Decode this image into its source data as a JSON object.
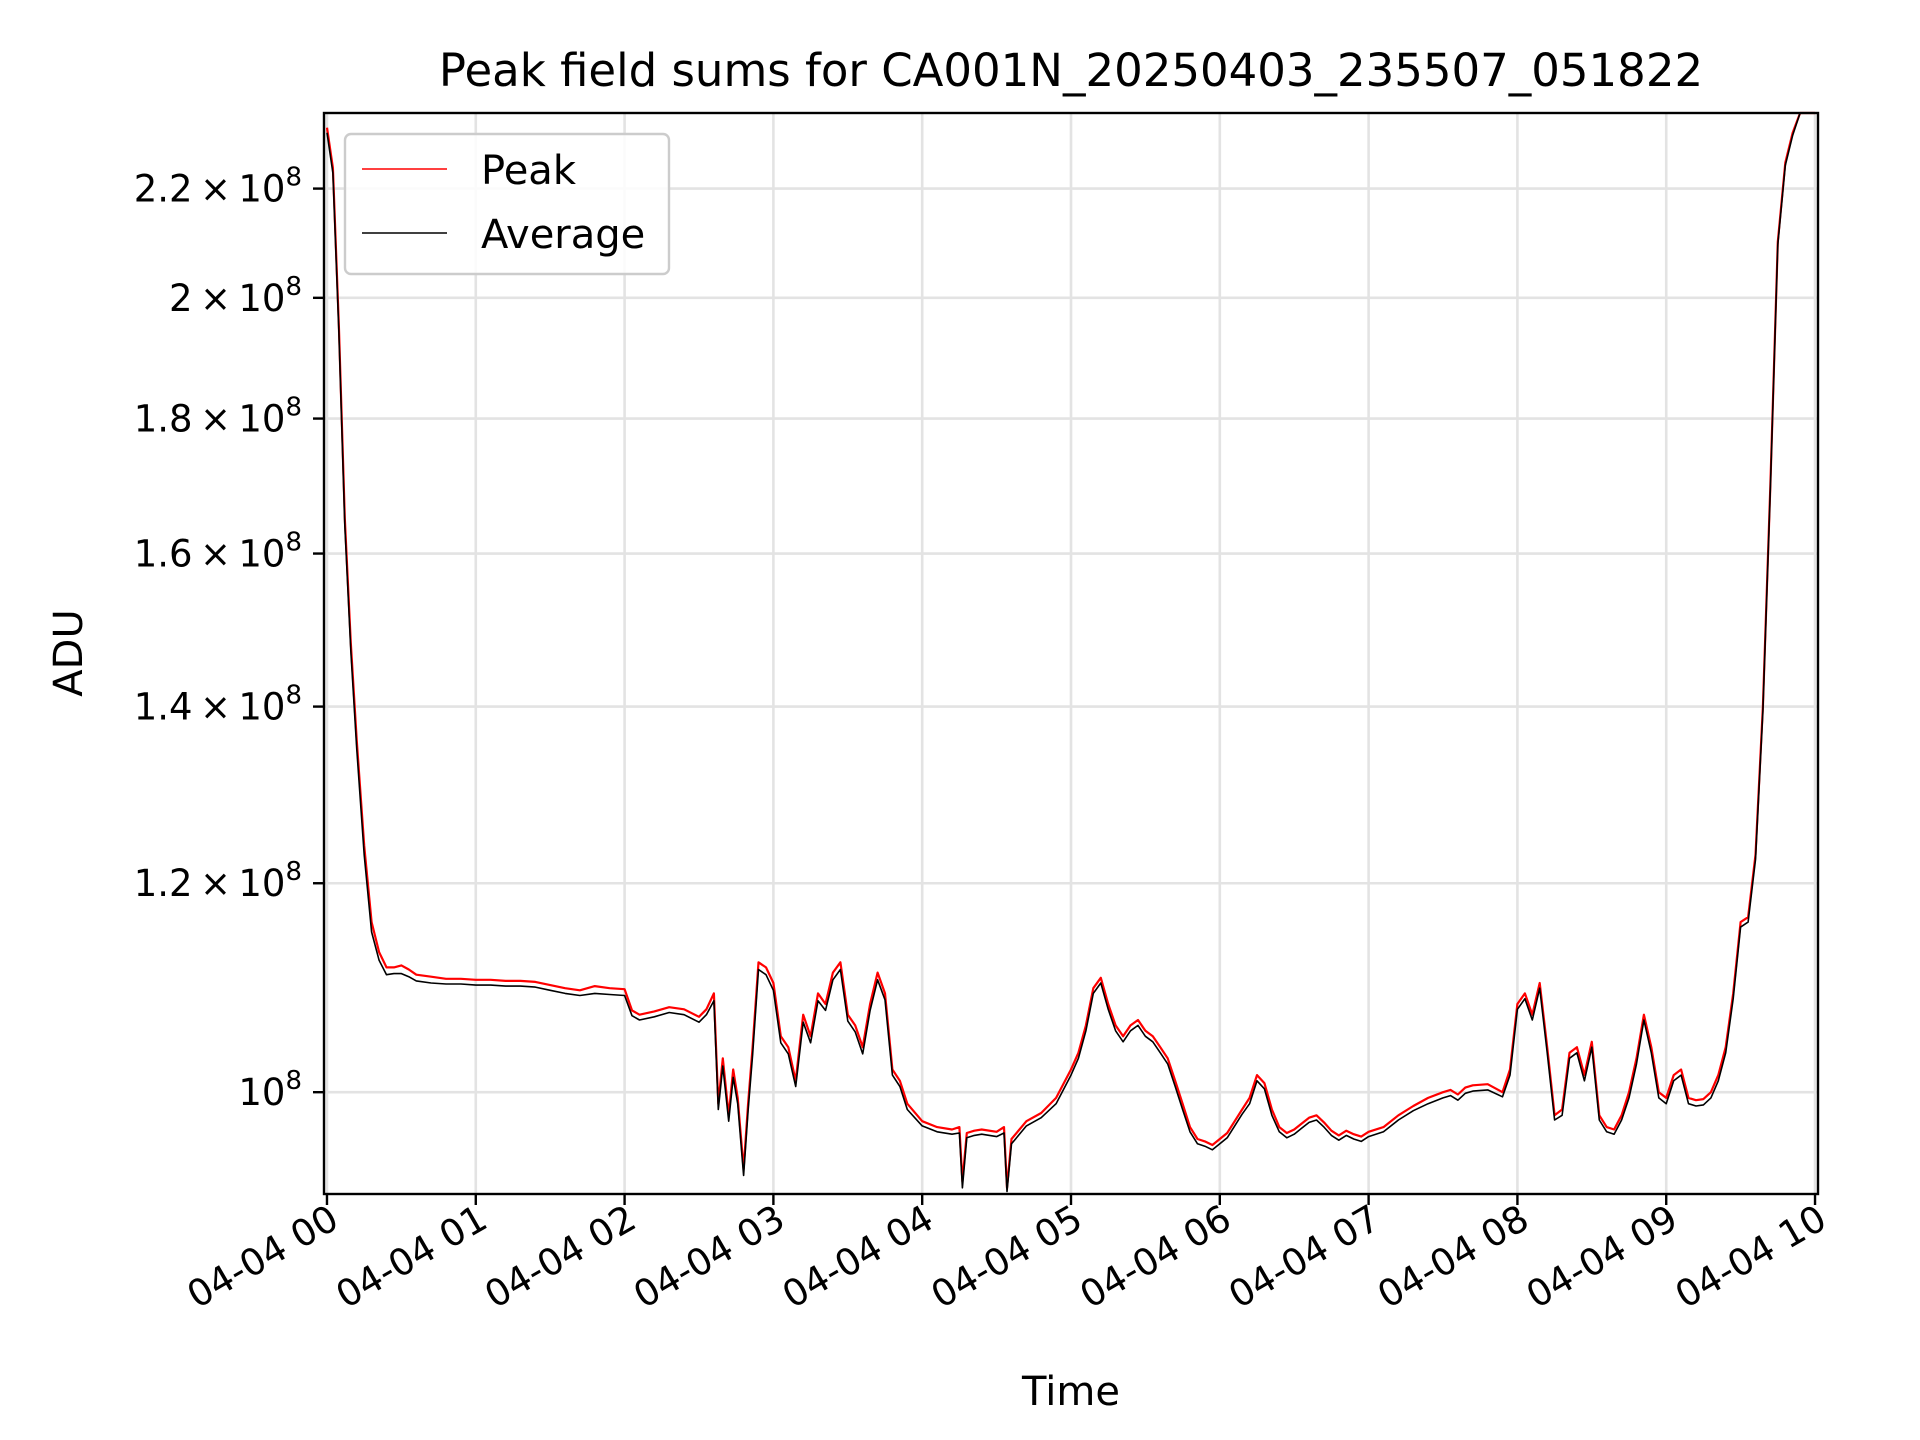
{
  "chart_data": {
    "type": "line",
    "title": "Peak field sums for CA001N_20250403_235507_051822",
    "xlabel": "Time",
    "ylabel": "ADU",
    "x_unit": "hours after 2025-04-04 00:00",
    "xlim": [
      -0.02,
      10.02
    ],
    "ylim": [
      91500000,
      235000000
    ],
    "y_scale": "log",
    "grid": true,
    "legend_position": "top-left",
    "x_ticks": [
      {
        "value": 0,
        "label": "04-04 00"
      },
      {
        "value": 1,
        "label": "04-04 01"
      },
      {
        "value": 2,
        "label": "04-04 02"
      },
      {
        "value": 3,
        "label": "04-04 03"
      },
      {
        "value": 4,
        "label": "04-04 04"
      },
      {
        "value": 5,
        "label": "04-04 05"
      },
      {
        "value": 6,
        "label": "04-04 06"
      },
      {
        "value": 7,
        "label": "04-04 07"
      },
      {
        "value": 8,
        "label": "04-04 08"
      },
      {
        "value": 9,
        "label": "04-04 09"
      },
      {
        "value": 10,
        "label": "04-04 10"
      }
    ],
    "y_ticks": [
      {
        "value": 100000000,
        "mantissa": "",
        "exponent": "8"
      },
      {
        "value": 120000000,
        "mantissa": "1.2",
        "exponent": "8"
      },
      {
        "value": 140000000,
        "mantissa": "1.4",
        "exponent": "8"
      },
      {
        "value": 160000000,
        "mantissa": "1.6",
        "exponent": "8"
      },
      {
        "value": 180000000,
        "mantissa": "1.8",
        "exponent": "8"
      },
      {
        "value": 200000000,
        "mantissa": "2",
        "exponent": "8"
      },
      {
        "value": 220000000,
        "mantissa": "2.2",
        "exponent": "8"
      }
    ],
    "series": [
      {
        "name": "Peak",
        "color": "#ff0000",
        "x": [
          0.0,
          0.04,
          0.08,
          0.12,
          0.16,
          0.2,
          0.25,
          0.3,
          0.35,
          0.4,
          0.45,
          0.5,
          0.55,
          0.6,
          0.7,
          0.8,
          0.9,
          1.0,
          1.1,
          1.2,
          1.3,
          1.4,
          1.5,
          1.6,
          1.7,
          1.8,
          1.9,
          2.0,
          2.05,
          2.1,
          2.2,
          2.3,
          2.4,
          2.5,
          2.55,
          2.6,
          2.63,
          2.66,
          2.7,
          2.73,
          2.76,
          2.8,
          2.83,
          2.86,
          2.9,
          2.95,
          3.0,
          3.05,
          3.1,
          3.15,
          3.2,
          3.25,
          3.3,
          3.35,
          3.4,
          3.45,
          3.5,
          3.55,
          3.6,
          3.65,
          3.7,
          3.75,
          3.8,
          3.85,
          3.9,
          4.0,
          4.1,
          4.2,
          4.25,
          4.27,
          4.3,
          4.35,
          4.4,
          4.5,
          4.55,
          4.57,
          4.6,
          4.7,
          4.8,
          4.9,
          5.0,
          5.05,
          5.1,
          5.15,
          5.2,
          5.25,
          5.3,
          5.35,
          5.4,
          5.45,
          5.5,
          5.55,
          5.6,
          5.65,
          5.7,
          5.75,
          5.8,
          5.85,
          5.9,
          5.95,
          6.0,
          6.05,
          6.1,
          6.15,
          6.2,
          6.25,
          6.3,
          6.35,
          6.4,
          6.45,
          6.5,
          6.55,
          6.6,
          6.65,
          6.7,
          6.75,
          6.8,
          6.85,
          6.9,
          6.95,
          7.0,
          7.1,
          7.2,
          7.3,
          7.4,
          7.5,
          7.55,
          7.6,
          7.65,
          7.7,
          7.8,
          7.9,
          7.95,
          8.0,
          8.05,
          8.1,
          8.15,
          8.2,
          8.25,
          8.3,
          8.35,
          8.4,
          8.45,
          8.5,
          8.55,
          8.6,
          8.65,
          8.7,
          8.75,
          8.8,
          8.85,
          8.9,
          8.95,
          9.0,
          9.05,
          9.1,
          9.15,
          9.2,
          9.25,
          9.3,
          9.35,
          9.4,
          9.45,
          9.5,
          9.55,
          9.6,
          9.65,
          9.7,
          9.75,
          9.8,
          9.85,
          9.9,
          9.95,
          10.0
        ],
        "values": [
          232000000,
          224000000,
          195000000,
          165000000,
          148000000,
          136000000,
          124000000,
          116000000,
          113000000,
          111500000,
          111500000,
          111700000,
          111300000,
          110800000,
          110600000,
          110400000,
          110400000,
          110300000,
          110300000,
          110200000,
          110200000,
          110100000,
          109800000,
          109500000,
          109300000,
          109700000,
          109500000,
          109400000,
          107400000,
          107000000,
          107300000,
          107700000,
          107500000,
          106800000,
          107500000,
          109000000,
          99000000,
          103000000,
          98000000,
          102000000,
          99500000,
          93500000,
          99000000,
          104000000,
          112000000,
          111500000,
          110000000,
          105000000,
          104000000,
          101000000,
          107000000,
          105000000,
          109000000,
          108000000,
          111000000,
          112000000,
          107000000,
          106000000,
          104000000,
          108000000,
          111000000,
          109000000,
          102000000,
          101000000,
          99000000,
          97500000,
          97000000,
          96800000,
          97000000,
          92500000,
          96500000,
          96700000,
          96800000,
          96600000,
          97000000,
          92000000,
          96000000,
          97500000,
          98200000,
          99500000,
          102000000,
          103500000,
          106000000,
          109500000,
          110500000,
          108000000,
          106000000,
          105000000,
          106000000,
          106500000,
          105500000,
          105000000,
          104000000,
          103000000,
          101000000,
          99000000,
          97000000,
          96000000,
          95800000,
          95500000,
          96000000,
          96500000,
          97500000,
          98500000,
          99500000,
          101500000,
          100800000,
          98500000,
          97000000,
          96500000,
          96800000,
          97300000,
          97800000,
          98000000,
          97400000,
          96700000,
          96300000,
          96700000,
          96400000,
          96200000,
          96600000,
          97000000,
          98000000,
          98800000,
          99500000,
          100000000,
          100200000,
          99800000,
          100400000,
          100600000,
          100700000,
          100000000,
          102000000,
          108000000,
          109000000,
          107000000,
          110000000,
          104000000,
          98000000,
          98500000,
          103500000,
          104000000,
          101500000,
          104500000,
          98000000,
          97000000,
          96800000,
          98000000,
          100000000,
          103000000,
          107000000,
          104000000,
          100000000,
          99500000,
          101500000,
          102000000,
          99500000,
          99300000,
          99400000,
          100000000,
          101500000,
          104000000,
          109000000,
          116000000,
          116500000,
          123000000,
          140000000,
          170000000,
          210000000,
          225000000,
          231000000,
          235000000,
          235000000,
          235000000
        ]
      },
      {
        "name": "Average",
        "color": "#000000",
        "x": [
          0.0,
          0.04,
          0.08,
          0.12,
          0.16,
          0.2,
          0.25,
          0.3,
          0.35,
          0.4,
          0.45,
          0.5,
          0.55,
          0.6,
          0.7,
          0.8,
          0.9,
          1.0,
          1.1,
          1.2,
          1.3,
          1.4,
          1.5,
          1.6,
          1.7,
          1.8,
          1.9,
          2.0,
          2.05,
          2.1,
          2.2,
          2.3,
          2.4,
          2.5,
          2.55,
          2.6,
          2.63,
          2.66,
          2.7,
          2.73,
          2.76,
          2.8,
          2.83,
          2.86,
          2.9,
          2.95,
          3.0,
          3.05,
          3.1,
          3.15,
          3.2,
          3.25,
          3.3,
          3.35,
          3.4,
          3.45,
          3.5,
          3.55,
          3.6,
          3.65,
          3.7,
          3.75,
          3.8,
          3.85,
          3.9,
          4.0,
          4.1,
          4.2,
          4.25,
          4.27,
          4.3,
          4.35,
          4.4,
          4.5,
          4.55,
          4.57,
          4.6,
          4.7,
          4.8,
          4.9,
          5.0,
          5.05,
          5.1,
          5.15,
          5.2,
          5.25,
          5.3,
          5.35,
          5.4,
          5.45,
          5.5,
          5.55,
          5.6,
          5.65,
          5.7,
          5.75,
          5.8,
          5.85,
          5.9,
          5.95,
          6.0,
          6.05,
          6.1,
          6.15,
          6.2,
          6.25,
          6.3,
          6.35,
          6.4,
          6.45,
          6.5,
          6.55,
          6.6,
          6.65,
          6.7,
          6.75,
          6.8,
          6.85,
          6.9,
          6.95,
          7.0,
          7.1,
          7.2,
          7.3,
          7.4,
          7.5,
          7.55,
          7.6,
          7.65,
          7.7,
          7.8,
          7.9,
          7.95,
          8.0,
          8.05,
          8.1,
          8.15,
          8.2,
          8.25,
          8.3,
          8.35,
          8.4,
          8.45,
          8.5,
          8.55,
          8.6,
          8.65,
          8.7,
          8.75,
          8.8,
          8.85,
          8.9,
          8.95,
          9.0,
          9.05,
          9.1,
          9.15,
          9.2,
          9.25,
          9.3,
          9.35,
          9.4,
          9.45,
          9.5,
          9.55,
          9.6,
          9.65,
          9.7,
          9.75,
          9.8,
          9.85,
          9.9,
          9.95,
          10.0
        ],
        "values": [
          231000000,
          223000000,
          194000000,
          164000000,
          147000000,
          135000000,
          123000000,
          115000000,
          112200000,
          110800000,
          110900000,
          110900000,
          110600000,
          110200000,
          110000000,
          109900000,
          109900000,
          109800000,
          109800000,
          109700000,
          109700000,
          109600000,
          109300000,
          109000000,
          108800000,
          109000000,
          108900000,
          108800000,
          106900000,
          106500000,
          106800000,
          107200000,
          107000000,
          106300000,
          107000000,
          108300000,
          98500000,
          102300000,
          97500000,
          101300000,
          99000000,
          93000000,
          98400000,
          103300000,
          111300000,
          110800000,
          109300000,
          104400000,
          103400000,
          100500000,
          106300000,
          104400000,
          108300000,
          107400000,
          110300000,
          111300000,
          106400000,
          105400000,
          103400000,
          107400000,
          110300000,
          108400000,
          101500000,
          100500000,
          98500000,
          97100000,
          96600000,
          96400000,
          96500000,
          92000000,
          96100000,
          96300000,
          96400000,
          96200000,
          96500000,
          91700000,
          95600000,
          97100000,
          97800000,
          99000000,
          101500000,
          103000000,
          105500000,
          109000000,
          110000000,
          107500000,
          105500000,
          104500000,
          105500000,
          106000000,
          105000000,
          104500000,
          103500000,
          102500000,
          100500000,
          98500000,
          96600000,
          95600000,
          95400000,
          95100000,
          95600000,
          96100000,
          97100000,
          98100000,
          99000000,
          101000000,
          100300000,
          98000000,
          96600000,
          96100000,
          96400000,
          96900000,
          97400000,
          97600000,
          97000000,
          96300000,
          95900000,
          96300000,
          96000000,
          95800000,
          96200000,
          96600000,
          97600000,
          98400000,
          99000000,
          99500000,
          99700000,
          99300000,
          99900000,
          100100000,
          100200000,
          99600000,
          101500000,
          107500000,
          108500000,
          106500000,
          109500000,
          103500000,
          97600000,
          98000000,
          103000000,
          103500000,
          101000000,
          104000000,
          97600000,
          96600000,
          96400000,
          97600000,
          99500000,
          102500000,
          106500000,
          103500000,
          99500000,
          99000000,
          101000000,
          101500000,
          99000000,
          98800000,
          98900000,
          99500000,
          101000000,
          103500000,
          108500000,
          115500000,
          116000000,
          122500000,
          139500000,
          169500000,
          209500000,
          224500000,
          230500000,
          235000000,
          235000000,
          235000000
        ]
      }
    ]
  }
}
